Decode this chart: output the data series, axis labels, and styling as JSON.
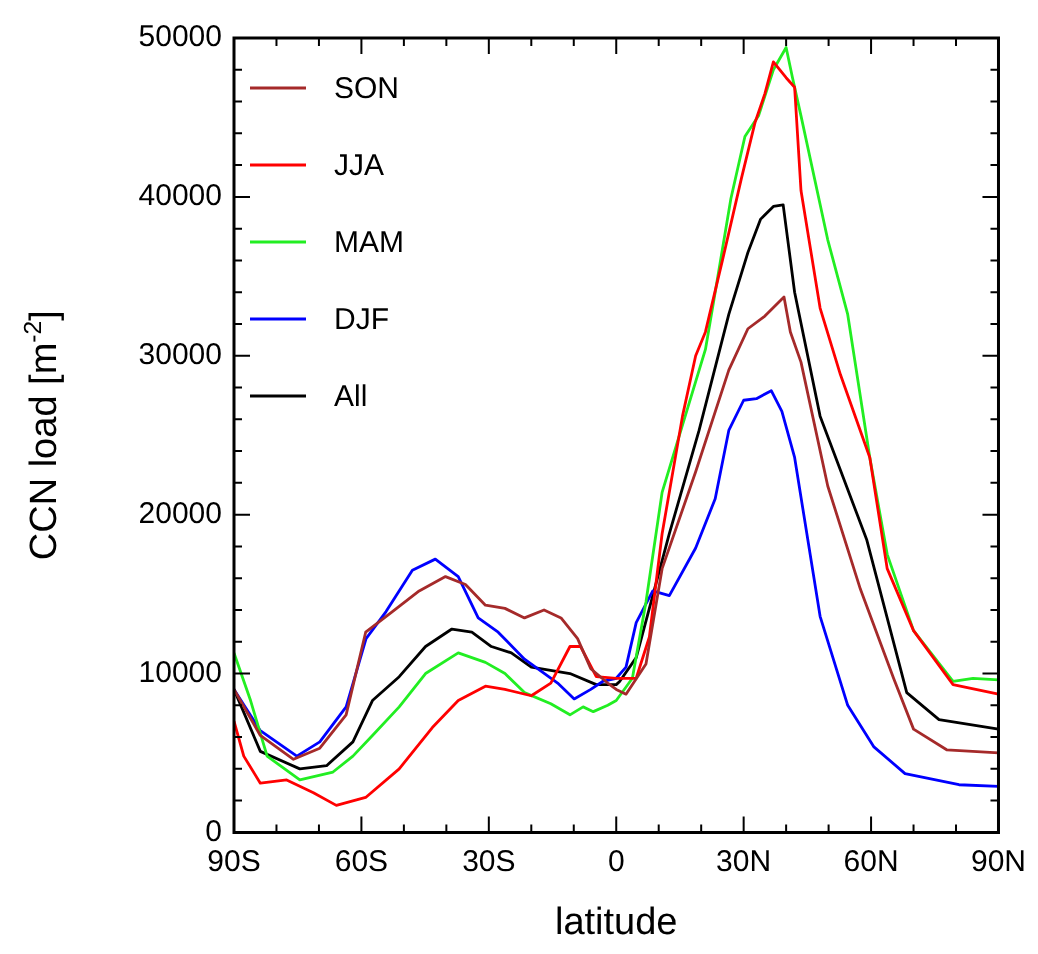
{
  "chart_data": {
    "type": "line",
    "xlabel": "latitude",
    "ylabel": "CCN load [m$^{-2}$]",
    "xlim": [
      -90,
      90
    ],
    "ylim": [
      0,
      50000
    ],
    "xticks": [
      {
        "value": -90,
        "label": "90S"
      },
      {
        "value": -80,
        "label": null
      },
      {
        "value": -70,
        "label": null
      },
      {
        "value": -60,
        "label": "60S"
      },
      {
        "value": -50,
        "label": null
      },
      {
        "value": -40,
        "label": null
      },
      {
        "value": -30,
        "label": "30S"
      },
      {
        "value": -20,
        "label": null
      },
      {
        "value": -10,
        "label": null
      },
      0,
      {
        "value": 10,
        "label": null
      },
      {
        "value": 20,
        "label": null
      },
      {
        "value": 30,
        "label": "30N"
      },
      {
        "value": 40,
        "label": null
      },
      {
        "value": 50,
        "label": null
      },
      {
        "value": 60,
        "label": "60N"
      },
      {
        "value": 70,
        "label": null
      },
      {
        "value": 80,
        "label": null
      },
      {
        "value": 90,
        "label": "90N"
      }
    ],
    "yticks": [
      0,
      {
        "value": 2000,
        "label": null
      },
      {
        "value": 4000,
        "label": null
      },
      {
        "value": 6000,
        "label": null
      },
      {
        "value": 8000,
        "label": null
      },
      10000,
      {
        "value": 12000,
        "label": null
      },
      {
        "value": 14000,
        "label": null
      },
      {
        "value": 16000,
        "label": null
      },
      {
        "value": 18000,
        "label": null
      },
      20000,
      {
        "value": 22000,
        "label": null
      },
      {
        "value": 24000,
        "label": null
      },
      {
        "value": 26000,
        "label": null
      },
      {
        "value": 28000,
        "label": null
      },
      30000,
      {
        "value": 32000,
        "label": null
      },
      {
        "value": 34000,
        "label": null
      },
      {
        "value": 36000,
        "label": null
      },
      {
        "value": 38000,
        "label": null
      },
      40000,
      {
        "value": 42000,
        "label": null
      },
      {
        "value": 44000,
        "label": null
      },
      {
        "value": 46000,
        "label": null
      },
      {
        "value": 48000,
        "label": null
      },
      50000
    ],
    "grid": false,
    "legend": "top left",
    "line_style": "solid",
    "marker": "none",
    "series": [
      {
        "name": "SON",
        "color": "#a52a2a",
        "x": [
          -90,
          -83.8,
          -76,
          -69.8,
          -63.6,
          -59,
          -52.7,
          -46.4,
          -40.2,
          -35.5,
          -30.8,
          -26.2,
          -21.6,
          -17,
          -13,
          -9.1,
          -6,
          -2,
          0,
          2.3,
          7,
          10.8,
          18.7,
          26.5,
          31,
          35,
          39.5,
          41,
          43.5,
          49.8,
          57.5,
          65.3,
          70,
          77.8,
          90
        ],
        "values": [
          9000,
          6100,
          4600,
          5300,
          7400,
          12600,
          13900,
          15200,
          16100,
          15600,
          14300,
          14100,
          13500,
          14000,
          13500,
          12200,
          10300,
          9400,
          9000,
          8700,
          10600,
          16600,
          22700,
          29100,
          31700,
          32500,
          33700,
          31500,
          29600,
          21800,
          15300,
          9700,
          6500,
          5200,
          5000
        ]
      },
      {
        "name": "JJA",
        "color": "#ff0000",
        "x": [
          -90,
          -87.7,
          -83.8,
          -77.6,
          -71.3,
          -65.9,
          -59,
          -51.1,
          -43.3,
          -37.2,
          -30.8,
          -26.2,
          -20,
          -15.4,
          -10.9,
          -8.4,
          -4.7,
          0,
          4.7,
          7.8,
          10.8,
          15.6,
          18.7,
          21,
          25,
          29.5,
          32.7,
          35,
          37,
          40,
          42,
          43.5,
          48,
          52.8,
          59.7,
          63.8,
          70,
          79.3,
          90
        ],
        "values": [
          7000,
          4800,
          3100,
          3300,
          2500,
          1700,
          2200,
          4000,
          6600,
          8300,
          9200,
          9000,
          8600,
          9400,
          11700,
          11700,
          9800,
          9700,
          9700,
          12300,
          18800,
          26200,
          30000,
          31500,
          36000,
          41200,
          44700,
          46500,
          48500,
          47500,
          46900,
          40400,
          33000,
          28800,
          23600,
          16600,
          12700,
          9300,
          8700
        ]
      },
      {
        "name": "MAM",
        "color": "#22ee22",
        "x": [
          -90,
          -86.1,
          -82.2,
          -74.5,
          -66.7,
          -62,
          -57.4,
          -51.1,
          -44.9,
          -37.2,
          -30.8,
          -26.2,
          -21.6,
          -15.4,
          -10.9,
          -7.8,
          -5.4,
          -2,
          0,
          3.8,
          7,
          10.8,
          21,
          23.3,
          27,
          30.3,
          33.5,
          37,
          40,
          41.5,
          43.5,
          49.8,
          54.5,
          59.7,
          63.8,
          70,
          79.3,
          84,
          90
        ],
        "values": [
          11300,
          8300,
          4800,
          3300,
          3800,
          4800,
          6100,
          7900,
          10000,
          11300,
          10700,
          10000,
          8800,
          8100,
          7400,
          7900,
          7600,
          8000,
          8300,
          9700,
          14500,
          21400,
          30400,
          34000,
          39900,
          43800,
          45100,
          48000,
          49400,
          47500,
          45100,
          37300,
          32600,
          23600,
          17500,
          12700,
          9500,
          9700,
          9600
        ]
      },
      {
        "name": "DJF",
        "color": "#0000ff",
        "x": [
          -90,
          -83.8,
          -75.2,
          -69.8,
          -63.6,
          -58.9,
          -54.2,
          -48,
          -42.6,
          -37.2,
          -32.5,
          -27.8,
          -21.6,
          -13.8,
          -9.9,
          -6,
          -3.2,
          0,
          2.3,
          4.7,
          8.6,
          12.5,
          18.7,
          23.3,
          26.5,
          30,
          33,
          36.5,
          39,
          42,
          48,
          54.5,
          60.6,
          68,
          80.7,
          90
        ],
        "values": [
          9000,
          6400,
          4800,
          5700,
          7900,
          12200,
          13900,
          16500,
          17200,
          16100,
          13500,
          12600,
          10900,
          9400,
          8400,
          9000,
          9500,
          9700,
          10400,
          13200,
          15200,
          14900,
          17900,
          21000,
          25300,
          27200,
          27300,
          27800,
          26500,
          23600,
          13600,
          8000,
          5400,
          3700,
          3000,
          2900
        ]
      },
      {
        "name": "All",
        "color": "#000000",
        "x": [
          -90,
          -83.8,
          -74.5,
          -68.2,
          -62,
          -57.4,
          -51.1,
          -44.9,
          -38.7,
          -34,
          -29.4,
          -24.7,
          -20,
          -10.9,
          -4.7,
          0,
          0.8,
          4.7,
          12.5,
          19.5,
          26.5,
          31,
          34,
          37,
          39.3,
          42,
          48,
          59,
          68.4,
          76,
          90
        ],
        "values": [
          9000,
          5100,
          4000,
          4200,
          5700,
          8300,
          9800,
          11700,
          12800,
          12600,
          11700,
          11300,
          10400,
          10000,
          9300,
          9300,
          9500,
          11000,
          18800,
          25300,
          32600,
          36500,
          38600,
          39400,
          39500,
          34000,
          26200,
          18400,
          8800,
          7100,
          6500
        ]
      }
    ]
  }
}
